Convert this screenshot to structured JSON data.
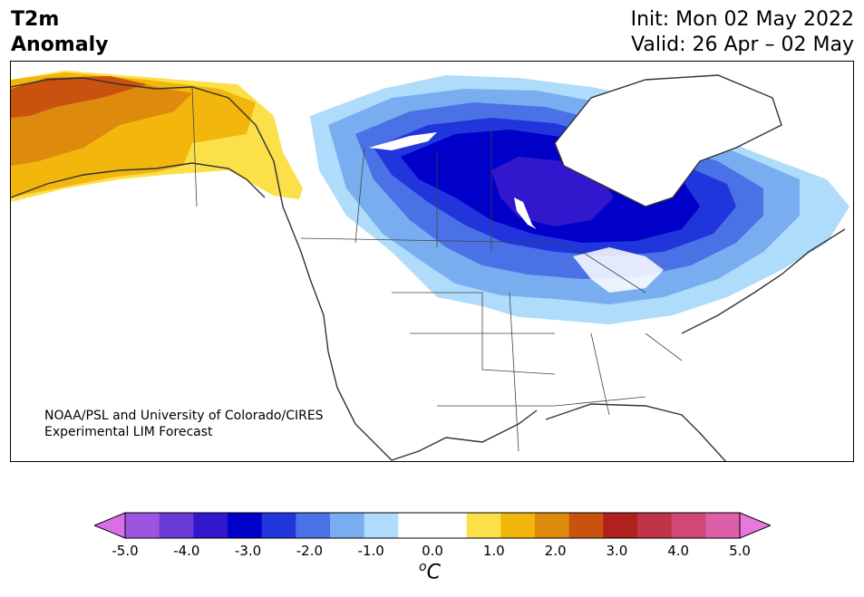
{
  "header": {
    "title_line1": "T2m",
    "title_line2": "Anomaly",
    "init": "Init: Mon 02 May 2022",
    "valid": "Valid: 26 Apr – 02 May"
  },
  "credit": {
    "line1": "NOAA/PSL and University of Colorado/CIRES",
    "line2": "Experimental LIM Forecast"
  },
  "colorbar": {
    "unit_base": "C",
    "unit_super": "o",
    "tick_labels": [
      "-5.0",
      "-4.0",
      "-3.0",
      "-2.0",
      "-1.0",
      "0.0",
      "1.0",
      "2.0",
      "3.0",
      "4.0",
      "5.0"
    ],
    "colors": [
      "#d86fe8",
      "#9b55e0",
      "#6a3ad8",
      "#3218cc",
      "#0000c8",
      "#2036dc",
      "#4a72e6",
      "#78aef0",
      "#aedcfa",
      "#ffffff",
      "#ffffff",
      "#fce04a",
      "#f2b60c",
      "#de8a0c",
      "#c8520e",
      "#b0201e",
      "#c03448",
      "#d04878",
      "#dc60a8",
      "#e878dc"
    ]
  },
  "map": {
    "region": "North America",
    "field": "2m temperature anomaly forecast"
  }
}
